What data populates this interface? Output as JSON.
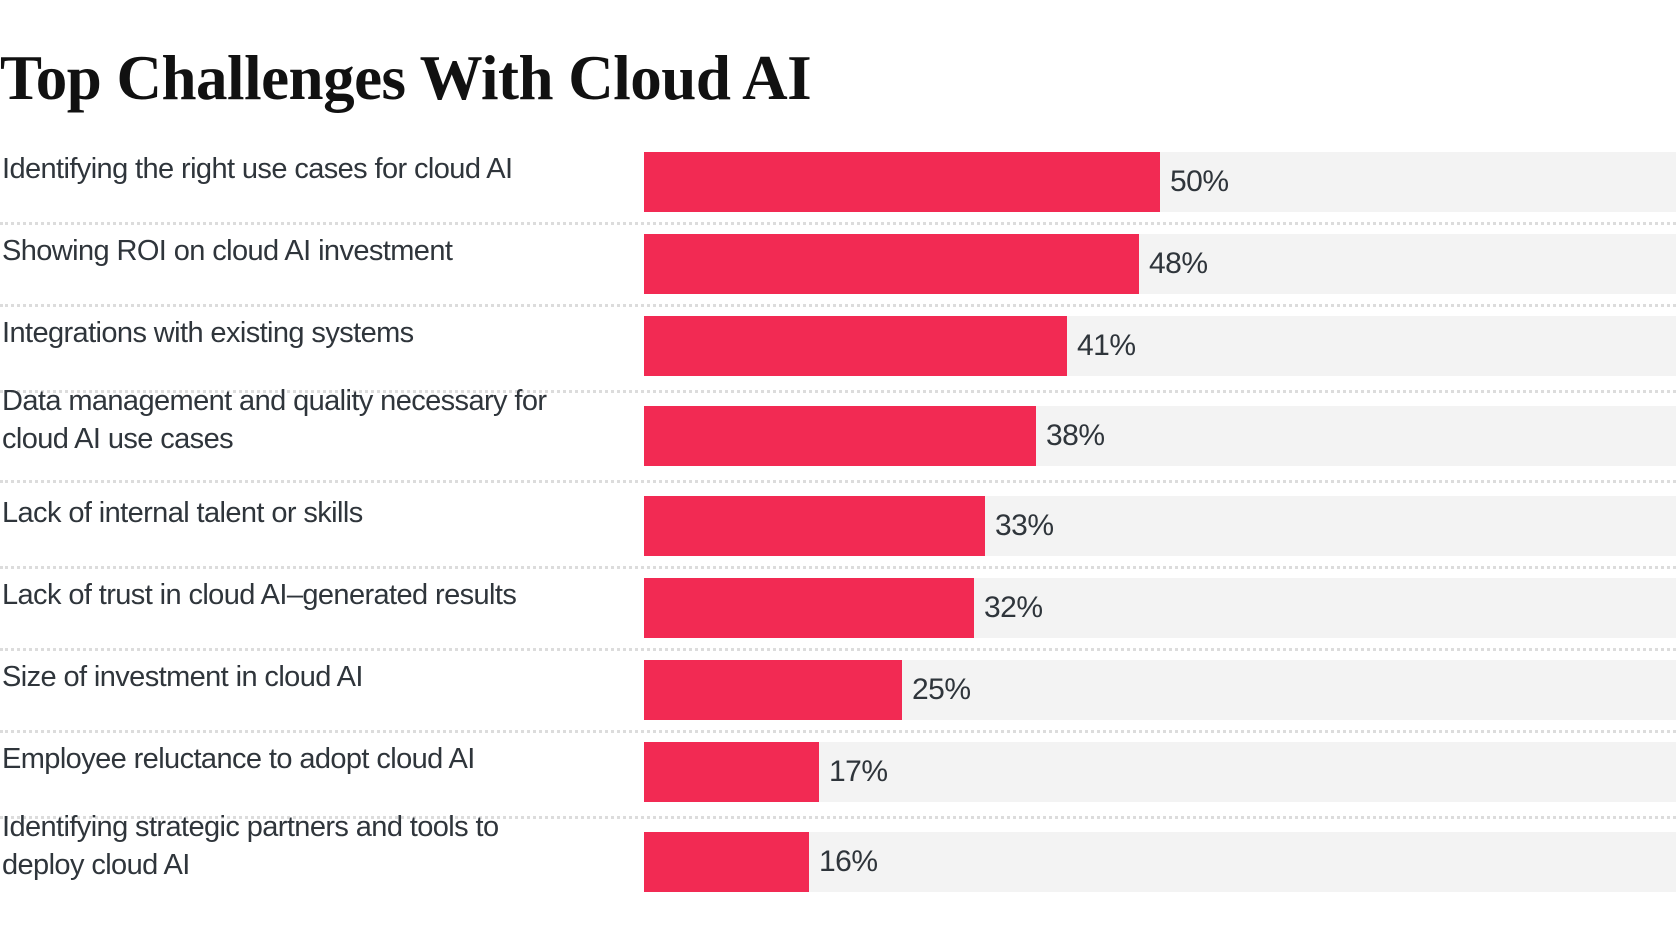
{
  "chart_data": {
    "type": "bar",
    "orientation": "horizontal",
    "title": "Top Challenges With Cloud AI",
    "xlabel": "",
    "ylabel": "",
    "xlim": [
      0,
      100
    ],
    "unit": "%",
    "grid": false,
    "legend": null,
    "colors": {
      "bar": "#f22a53",
      "track": "#f3f3f3",
      "text": "#2f353b",
      "separator": "#dcdcdc"
    },
    "categories": [
      [
        "Identifying the right use cases for cloud AI"
      ],
      [
        "Showing ROI on cloud AI investment"
      ],
      [
        "Integrations with existing systems"
      ],
      [
        "Data management and quality necessary for",
        "cloud AI use cases"
      ],
      [
        "Lack of internal talent or skills"
      ],
      [
        "Lack of trust in cloud AI–generated results"
      ],
      [
        "Size of investment in cloud AI"
      ],
      [
        "Employee reluctance to adopt cloud AI"
      ],
      [
        "Identifying strategic partners and tools to",
        "deploy cloud AI"
      ]
    ],
    "values": [
      50,
      48,
      41,
      38,
      33,
      32,
      25,
      17,
      16
    ],
    "data_labels": [
      "50%",
      "48%",
      "41%",
      "38%",
      "33%",
      "32%",
      "25%",
      "17%",
      "16%"
    ]
  }
}
